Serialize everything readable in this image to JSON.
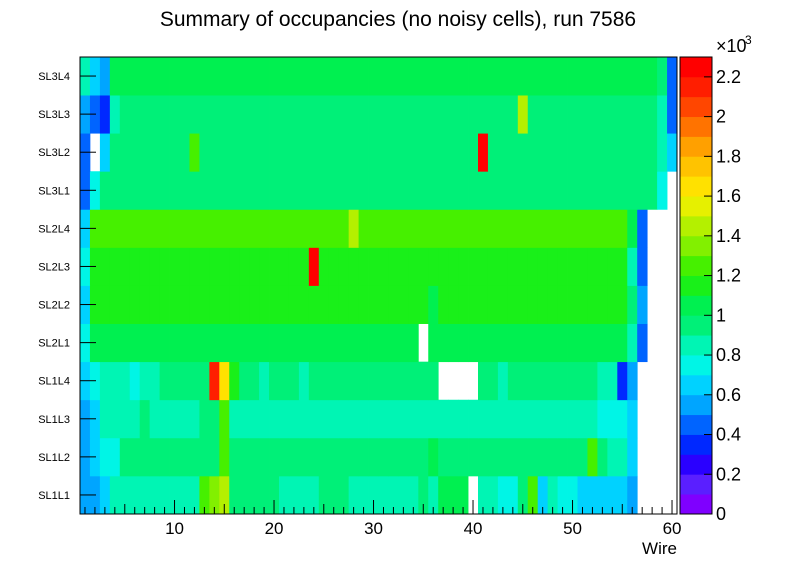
{
  "chart_data": {
    "type": "heatmap",
    "title": "Summary of occupancies (no noisy cells), run 7586",
    "xlabel": "Wire",
    "ylabel": "",
    "x_range": [
      0.5,
      60.5
    ],
    "x_ticks": [
      "10",
      "20",
      "30",
      "40",
      "50",
      "60"
    ],
    "x_tick_values": [
      10,
      20,
      30,
      40,
      50,
      60
    ],
    "layers": [
      "SL1L1",
      "SL1L2",
      "SL1L3",
      "SL1L4",
      "SL2L1",
      "SL2L2",
      "SL2L3",
      "SL2L4",
      "SL3L1",
      "SL3L2",
      "SL3L3",
      "SL3L4"
    ],
    "z_range": [
      0,
      2300
    ],
    "z_multiplier_label": "×10",
    "z_multiplier_exponent": "3",
    "z_ticks": [
      "0",
      "0.2",
      "0.4",
      "0.6",
      "0.8",
      "1",
      "1.2",
      "1.4",
      "1.6",
      "1.8",
      "2",
      "2.2"
    ],
    "z_tick_values": [
      0,
      200,
      400,
      600,
      800,
      1000,
      1200,
      1400,
      1600,
      1800,
      2000,
      2200
    ],
    "palette": [
      "#7f00ff",
      "#5a1fff",
      "#2a00ff",
      "#0028ff",
      "#0064ff",
      "#00a5ff",
      "#00d2ff",
      "#00f5e6",
      "#00f5b4",
      "#00f078",
      "#00f050",
      "#19f019",
      "#46f000",
      "#82f000",
      "#b4f000",
      "#e6f000",
      "#ffe100",
      "#ffc300",
      "#ffa000",
      "#ff7300",
      "#ff4600",
      "#ff1e00",
      "#ff0000"
    ],
    "rows": [
      [
        500,
        500,
        600,
        800,
        800,
        800,
        800,
        800,
        800,
        800,
        800,
        800,
        1200,
        1350,
        1400,
        900,
        900,
        900,
        900,
        900,
        800,
        800,
        800,
        800,
        900,
        900,
        900,
        800,
        800,
        800,
        800,
        800,
        800,
        800,
        900,
        800,
        1000,
        1000,
        1000,
        0,
        800,
        800,
        700,
        700,
        900,
        1250,
        600,
        800,
        700,
        700,
        600,
        600,
        600,
        600,
        600,
        500,
        0,
        0,
        0,
        0
      ],
      [
        500,
        600,
        750,
        750,
        950,
        950,
        950,
        950,
        950,
        950,
        950,
        950,
        950,
        950,
        1250,
        950,
        950,
        950,
        950,
        950,
        950,
        950,
        950,
        950,
        950,
        950,
        950,
        950,
        950,
        950,
        950,
        950,
        950,
        950,
        950,
        1000,
        950,
        950,
        950,
        950,
        950,
        950,
        950,
        950,
        950,
        950,
        950,
        950,
        950,
        950,
        950,
        1200,
        950,
        800,
        800,
        600,
        0,
        0,
        0,
        0
      ],
      [
        500,
        600,
        800,
        850,
        850,
        850,
        950,
        850,
        850,
        850,
        850,
        850,
        950,
        950,
        1200,
        850,
        850,
        850,
        850,
        850,
        850,
        850,
        850,
        850,
        850,
        850,
        850,
        850,
        850,
        850,
        850,
        850,
        850,
        850,
        850,
        850,
        850,
        850,
        850,
        850,
        850,
        850,
        850,
        850,
        850,
        850,
        850,
        850,
        850,
        850,
        850,
        850,
        700,
        700,
        700,
        600,
        0,
        0,
        0,
        0
      ],
      [
        650,
        750,
        800,
        800,
        800,
        750,
        850,
        850,
        900,
        900,
        900,
        900,
        900,
        2100,
        1650,
        1150,
        900,
        900,
        800,
        900,
        900,
        900,
        850,
        900,
        900,
        900,
        900,
        900,
        900,
        900,
        900,
        900,
        900,
        900,
        900,
        950,
        0,
        0,
        0,
        0,
        900,
        900,
        800,
        900,
        900,
        950,
        900,
        900,
        900,
        900,
        900,
        900,
        800,
        800,
        300,
        500,
        0,
        0,
        0,
        0
      ],
      [
        750,
        1000,
        1000,
        1050,
        1050,
        1050,
        1050,
        1050,
        1050,
        1050,
        1050,
        1050,
        1050,
        1050,
        1050,
        1050,
        1050,
        1050,
        1050,
        1050,
        1050,
        1050,
        1050,
        1050,
        1050,
        1050,
        1050,
        1050,
        1050,
        1050,
        1050,
        1050,
        1050,
        1050,
        0,
        1050,
        1050,
        1050,
        1050,
        1050,
        1050,
        1050,
        1050,
        1050,
        1050,
        1050,
        1050,
        1050,
        1050,
        1050,
        1050,
        1050,
        1050,
        1050,
        1050,
        800,
        400,
        0,
        0,
        0
      ],
      [
        600,
        1150,
        1150,
        1150,
        1150,
        1150,
        1150,
        1150,
        1150,
        1150,
        1150,
        1150,
        1150,
        1150,
        1150,
        1150,
        1150,
        1150,
        1150,
        1150,
        1150,
        1150,
        1150,
        1150,
        1150,
        1150,
        1150,
        1150,
        1150,
        1150,
        1150,
        1150,
        1150,
        1150,
        1150,
        1000,
        1150,
        1150,
        1150,
        1150,
        1150,
        1150,
        1150,
        1150,
        1150,
        1150,
        1150,
        1150,
        1150,
        1150,
        1150,
        1150,
        1150,
        1150,
        1150,
        900,
        500,
        0,
        0,
        0
      ],
      [
        750,
        1150,
        1150,
        1150,
        1150,
        1150,
        1150,
        1150,
        1150,
        1150,
        1150,
        1150,
        1150,
        1150,
        1150,
        1150,
        1150,
        1150,
        1150,
        1150,
        1150,
        1150,
        1150,
        2250,
        1150,
        1150,
        1150,
        1150,
        1150,
        1150,
        1150,
        1150,
        1150,
        1150,
        1150,
        1150,
        1150,
        1150,
        1150,
        1150,
        1150,
        1150,
        1150,
        1150,
        1150,
        1150,
        1150,
        1150,
        1150,
        1150,
        1150,
        1150,
        1150,
        1150,
        1150,
        800,
        400,
        0,
        0,
        0
      ],
      [
        650,
        1200,
        1200,
        1200,
        1200,
        1200,
        1200,
        1200,
        1200,
        1200,
        1200,
        1200,
        1200,
        1200,
        1200,
        1200,
        1200,
        1200,
        1200,
        1200,
        1200,
        1200,
        1200,
        1200,
        1200,
        1200,
        1200,
        1400,
        1200,
        1200,
        1200,
        1200,
        1200,
        1200,
        1200,
        1200,
        1200,
        1200,
        1200,
        1200,
        1200,
        1200,
        1200,
        1200,
        1200,
        1200,
        1200,
        1200,
        1200,
        1200,
        1200,
        1200,
        1200,
        1200,
        1200,
        1000,
        400,
        0,
        0,
        0
      ],
      [
        450,
        700,
        900,
        950,
        950,
        950,
        950,
        950,
        950,
        950,
        950,
        950,
        950,
        950,
        950,
        950,
        950,
        950,
        950,
        950,
        950,
        950,
        950,
        950,
        950,
        950,
        950,
        950,
        950,
        950,
        950,
        950,
        950,
        950,
        950,
        950,
        950,
        950,
        950,
        950,
        950,
        950,
        950,
        950,
        950,
        950,
        950,
        950,
        950,
        950,
        950,
        950,
        950,
        950,
        950,
        950,
        950,
        950,
        700,
        0
      ],
      [
        450,
        0,
        650,
        950,
        950,
        950,
        950,
        950,
        950,
        950,
        950,
        1200,
        950,
        950,
        950,
        950,
        950,
        950,
        950,
        950,
        950,
        950,
        950,
        950,
        950,
        950,
        950,
        950,
        950,
        950,
        950,
        950,
        950,
        950,
        950,
        950,
        950,
        950,
        950,
        950,
        2250,
        950,
        950,
        950,
        950,
        950,
        950,
        950,
        950,
        950,
        950,
        950,
        950,
        950,
        950,
        950,
        950,
        950,
        850,
        650
      ],
      [
        500,
        450,
        300,
        850,
        950,
        950,
        950,
        950,
        950,
        950,
        950,
        950,
        950,
        950,
        950,
        950,
        950,
        950,
        950,
        950,
        950,
        950,
        950,
        950,
        950,
        950,
        950,
        950,
        950,
        950,
        950,
        950,
        950,
        950,
        950,
        950,
        950,
        950,
        950,
        950,
        950,
        950,
        950,
        950,
        1450,
        950,
        950,
        950,
        950,
        950,
        950,
        950,
        950,
        950,
        950,
        950,
        950,
        950,
        800,
        400
      ],
      [
        800,
        600,
        500,
        1000,
        1000,
        1000,
        1000,
        1000,
        1000,
        1000,
        1000,
        1000,
        1000,
        1000,
        1000,
        1000,
        1000,
        1000,
        1000,
        1000,
        1000,
        1000,
        1000,
        1000,
        1000,
        1000,
        1000,
        1000,
        1000,
        1000,
        1000,
        1000,
        1000,
        1000,
        1000,
        1000,
        1000,
        1000,
        1000,
        1000,
        1000,
        1000,
        1000,
        1000,
        1000,
        1000,
        1000,
        1000,
        1000,
        1000,
        1000,
        1000,
        1000,
        1000,
        1000,
        1000,
        1000,
        1000,
        900,
        400
      ]
    ]
  }
}
